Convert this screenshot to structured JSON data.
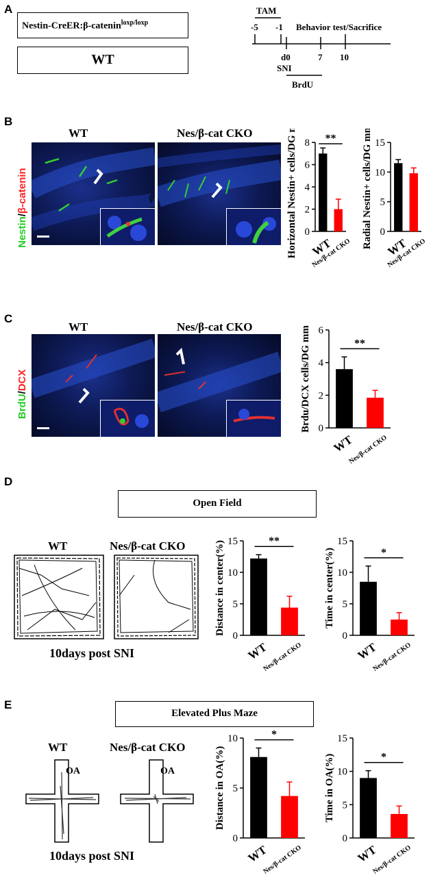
{
  "panels": {
    "A": {
      "letter": "A",
      "genotype_box": {
        "text": "Nestin-CreER:β-catenin",
        "sup": "loxp/loxp"
      },
      "wt_box": "WT",
      "timeline": {
        "tam": "TAM",
        "ticks": [
          "-5",
          "-1"
        ],
        "behavior": "Behavior test/Sacrifice",
        "d0": "d0",
        "sni": "SNI",
        "t7": "7",
        "t10": "10",
        "brdu": "BrdU"
      }
    },
    "B": {
      "letter": "B",
      "stain_left": "Nestin",
      "stain_sep": "/",
      "stain_right": "β-catenin",
      "img_wt": "WT",
      "img_cko": "Nes/β-cat CKO"
    },
    "C": {
      "letter": "C",
      "stain_left": "BrdU",
      "stain_sep": "/",
      "stain_right": "DCX",
      "img_wt": "WT",
      "img_cko": "Nes/β-cat CKO"
    },
    "D": {
      "letter": "D",
      "title": "Open Field",
      "track_wt": "WT",
      "track_cko": "Nes/β-cat CKO",
      "caption": "10days post SNI"
    },
    "E": {
      "letter": "E",
      "title": "Elevated Plus Maze",
      "track_wt": "WT",
      "track_cko": "Nes/β-cat CKO",
      "oa": "OA",
      "caption": "10days post SNI"
    }
  },
  "colors": {
    "wt": "#000000",
    "cko": "#ff0000",
    "nestin": "#22cc22",
    "catenin": "#ff2222"
  },
  "chart_data": [
    {
      "id": "B1",
      "type": "bar",
      "categories": [
        "WT",
        "Nes/β-cat CKO"
      ],
      "values": [
        7.0,
        2.0
      ],
      "errors": [
        0.5,
        0.9
      ],
      "ylabel": "Horizontal Nestin+ cells/DG mm",
      "ylim": [
        0,
        8
      ],
      "yticks": [
        "0",
        "2",
        "4",
        "6",
        "8"
      ],
      "sig": "**"
    },
    {
      "id": "B2",
      "type": "bar",
      "categories": [
        "WT",
        "Nes/β-cat CKO"
      ],
      "values": [
        11.5,
        9.8
      ],
      "errors": [
        0.6,
        0.9
      ],
      "ylabel": "Radial Nestin+ cells/DG mm",
      "ylim": [
        0,
        15
      ],
      "yticks": [
        "0",
        "5",
        "10",
        "15"
      ],
      "sig": ""
    },
    {
      "id": "C1",
      "type": "bar",
      "categories": [
        "WT",
        "Nes/β-cat CKO"
      ],
      "values": [
        3.6,
        1.85
      ],
      "errors": [
        0.75,
        0.45
      ],
      "ylabel": "Brdu/DCX cells/DG mm",
      "ylim": [
        0,
        6
      ],
      "yticks": [
        "0",
        "2",
        "4",
        "6"
      ],
      "sig": "**"
    },
    {
      "id": "D1",
      "type": "bar",
      "categories": [
        "WT",
        "Nes/β-cat CKO"
      ],
      "values": [
        12.2,
        4.4
      ],
      "errors": [
        0.6,
        1.8
      ],
      "ylabel": "Distance in center(%)",
      "ylim": [
        0,
        15
      ],
      "yticks": [
        "0",
        "5",
        "10",
        "15"
      ],
      "sig": "**"
    },
    {
      "id": "D2",
      "type": "bar",
      "categories": [
        "WT",
        "Nes/β-cat CKO"
      ],
      "values": [
        8.5,
        2.5
      ],
      "errors": [
        2.5,
        1.1
      ],
      "ylabel": "Time in center(%)",
      "ylim": [
        0,
        15
      ],
      "yticks": [
        "0",
        "5",
        "10",
        "15"
      ],
      "sig": "*"
    },
    {
      "id": "E1",
      "type": "bar",
      "categories": [
        "WT",
        "Nes/β-cat CKO"
      ],
      "values": [
        8.1,
        4.2
      ],
      "errors": [
        0.9,
        1.4
      ],
      "ylabel": "Distance in OA(%)",
      "ylim": [
        0,
        10
      ],
      "yticks": [
        "0",
        "5",
        "10"
      ],
      "sig": "*"
    },
    {
      "id": "E2",
      "type": "bar",
      "categories": [
        "WT",
        "Nes/β-cat CKO"
      ],
      "values": [
        9.0,
        3.6
      ],
      "errors": [
        1.1,
        1.2
      ],
      "ylabel": "Time in OA(%)",
      "ylim": [
        0,
        15
      ],
      "yticks": [
        "0",
        "5",
        "10",
        "15"
      ],
      "sig": "*"
    }
  ]
}
